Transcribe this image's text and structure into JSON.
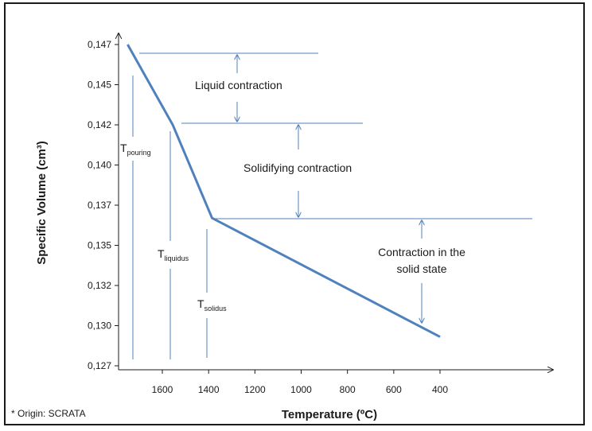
{
  "chart_data": {
    "type": "line",
    "xlabel": "Temperature (ºC)",
    "ylabel": "Specific Volume (cm³)",
    "x_ticks": [
      "1600",
      "1400",
      "1200",
      "1000",
      "800",
      "600",
      "400"
    ],
    "y_ticks": [
      "0,127",
      "0,130",
      "0,132",
      "0,135",
      "0,137",
      "0,140",
      "0,142",
      "0,145",
      "0,147"
    ],
    "x_reversed": true,
    "x": [
      1750,
      1555,
      1385,
      400
    ],
    "y": [
      0.147,
      0.142,
      0.1362,
      0.1288
    ],
    "grid": false,
    "series_color": "#4f81bd",
    "temperature_markers": [
      {
        "label": "T",
        "subscript": "pouring"
      },
      {
        "label": "T",
        "subscript": "liquidus"
      },
      {
        "label": "T",
        "subscript": "solidus"
      }
    ],
    "annotations": {
      "liquid": "Liquid contraction",
      "solidifying": "Solidifying contraction",
      "solid_line1": "Contraction in the",
      "solid_line2": "solid state"
    },
    "footnote": "* Origin: SCRATA"
  }
}
